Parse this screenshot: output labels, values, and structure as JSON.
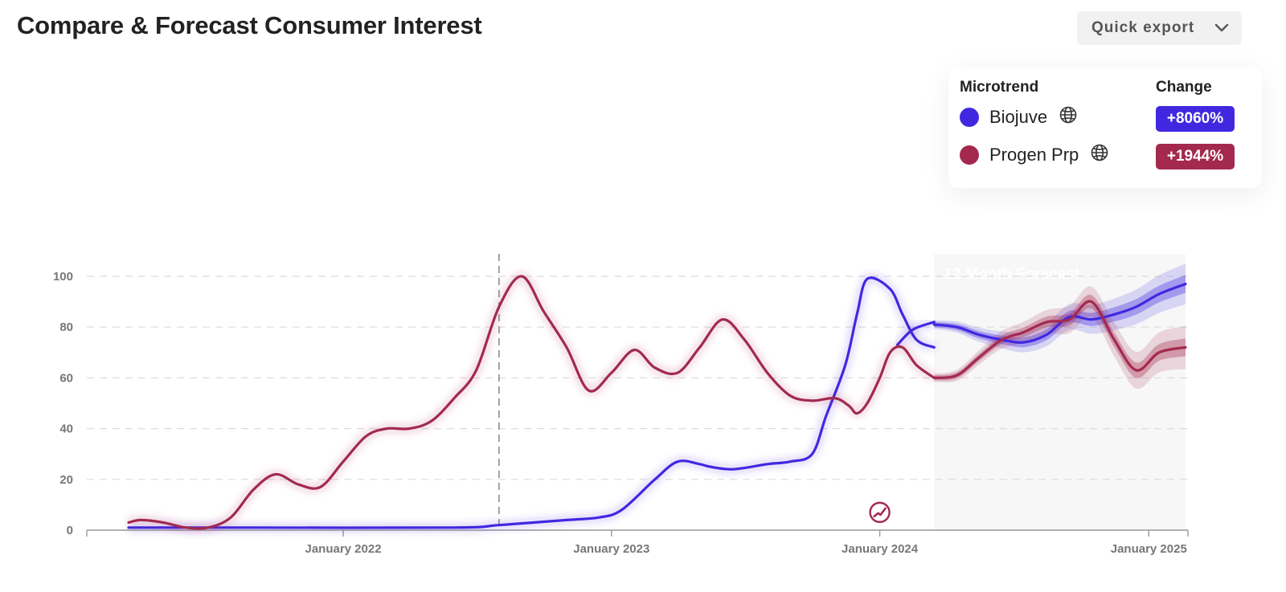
{
  "header": {
    "title": "Compare & Forecast Consumer Interest",
    "export_label": "Quick export"
  },
  "legend": {
    "microtrend_header": "Microtrend",
    "change_header": "Change",
    "items": [
      {
        "name": "Biojuve",
        "change": "+8060%",
        "color": "#4128e0",
        "icon": "globe-icon"
      },
      {
        "name": "Progen Prp",
        "change": "+1944%",
        "color": "#a3294f",
        "icon": "globe-icon"
      }
    ]
  },
  "chart_data": {
    "type": "line",
    "x_type": "date",
    "ylim": [
      0,
      100
    ],
    "yticks": [
      0,
      20,
      40,
      60,
      80,
      100
    ],
    "x_range": [
      "2021-03-15",
      "2025-02-20"
    ],
    "x_ticks": [
      {
        "date": "2022-01-01",
        "label": "January 2022"
      },
      {
        "date": "2023-01-01",
        "label": "January 2023"
      },
      {
        "date": "2024-01-01",
        "label": "January 2024"
      },
      {
        "date": "2025-01-01",
        "label": "January 2025"
      }
    ],
    "grid": true,
    "forecast": {
      "label": "12-Month Forecast",
      "start": "2024-03-15",
      "end": "2025-02-20"
    },
    "marker_date": "2022-08-01",
    "event_icon": {
      "date": "2024-01-01",
      "y": 7,
      "icon": "trend-icon"
    },
    "series": [
      {
        "name": "Biojuve",
        "color": "#4128e0",
        "x": [
          "2021-03-15",
          "2021-09-01",
          "2022-06-01",
          "2022-08-01",
          "2022-11-01",
          "2022-12-15",
          "2023-01-15",
          "2023-03-01",
          "2023-04-01",
          "2023-05-01",
          "2023-05-15",
          "2023-06-15",
          "2023-08-01",
          "2023-09-01",
          "2023-10-01",
          "2023-10-20",
          "2023-11-15",
          "2023-12-01",
          "2023-12-15",
          "2024-01-15",
          "2024-02-01",
          "2024-02-20",
          "2024-03-15"
        ],
        "y": [
          1,
          1,
          1,
          2,
          4,
          5,
          8,
          20,
          27,
          26,
          25,
          24,
          26,
          27,
          30,
          45,
          65,
          85,
          99,
          95,
          85,
          75,
          72
        ],
        "x2": [
          "2024-01-25",
          "2024-02-15",
          "2024-03-15"
        ],
        "y2": [
          73,
          79,
          82
        ]
      },
      {
        "name": "Progen Prp",
        "color": "#a3294f",
        "x": [
          "2021-03-15",
          "2021-04-01",
          "2021-05-01",
          "2021-06-01",
          "2021-07-01",
          "2021-08-01",
          "2021-09-01",
          "2021-10-01",
          "2021-11-01",
          "2021-12-01",
          "2022-01-01",
          "2022-02-01",
          "2022-03-01",
          "2022-04-01",
          "2022-05-01",
          "2022-06-01",
          "2022-07-01",
          "2022-08-01",
          "2022-09-01",
          "2022-10-01",
          "2022-11-01",
          "2022-12-01",
          "2023-01-01",
          "2023-02-01",
          "2023-03-01",
          "2023-04-01",
          "2023-05-01",
          "2023-06-01",
          "2023-07-01",
          "2023-08-01",
          "2023-09-01",
          "2023-10-01",
          "2023-11-01",
          "2023-11-20",
          "2023-12-01",
          "2023-12-15",
          "2024-01-01",
          "2024-01-15",
          "2024-02-01",
          "2024-02-20",
          "2024-03-15"
        ],
        "y": [
          3,
          4,
          3,
          1,
          1,
          5,
          16,
          22,
          18,
          17,
          27,
          37,
          40,
          40,
          43,
          52,
          63,
          88,
          100,
          86,
          72,
          55,
          62,
          71,
          64,
          62,
          72,
          83,
          75,
          62,
          53,
          51,
          52,
          49,
          46,
          50,
          60,
          70,
          72,
          65,
          60
        ]
      }
    ],
    "forecast_series": [
      {
        "name": "Biojuve",
        "x": [
          "2024-03-15",
          "2024-04-15",
          "2024-05-15",
          "2024-06-15",
          "2024-07-15",
          "2024-08-15",
          "2024-09-15",
          "2024-10-15",
          "2024-11-15",
          "2024-12-15",
          "2025-01-15",
          "2025-02-20"
        ],
        "y": [
          81,
          80,
          77,
          75,
          74,
          77,
          84,
          83,
          85,
          88,
          93,
          97
        ],
        "bands": [
          [
            1.0,
            3.5
          ],
          [
            1.6,
            8.0
          ]
        ]
      },
      {
        "name": "Progen Prp",
        "x": [
          "2024-03-15",
          "2024-04-15",
          "2024-05-15",
          "2024-06-15",
          "2024-07-15",
          "2024-08-15",
          "2024-09-15",
          "2024-10-15",
          "2024-11-15",
          "2024-12-15",
          "2025-01-15",
          "2025-02-20"
        ],
        "y": [
          60,
          61,
          68,
          75,
          78,
          82,
          83,
          90,
          75,
          63,
          70,
          72
        ],
        "bands": [
          [
            1.0,
            3.5
          ],
          [
            1.6,
            8.5
          ]
        ]
      }
    ]
  }
}
